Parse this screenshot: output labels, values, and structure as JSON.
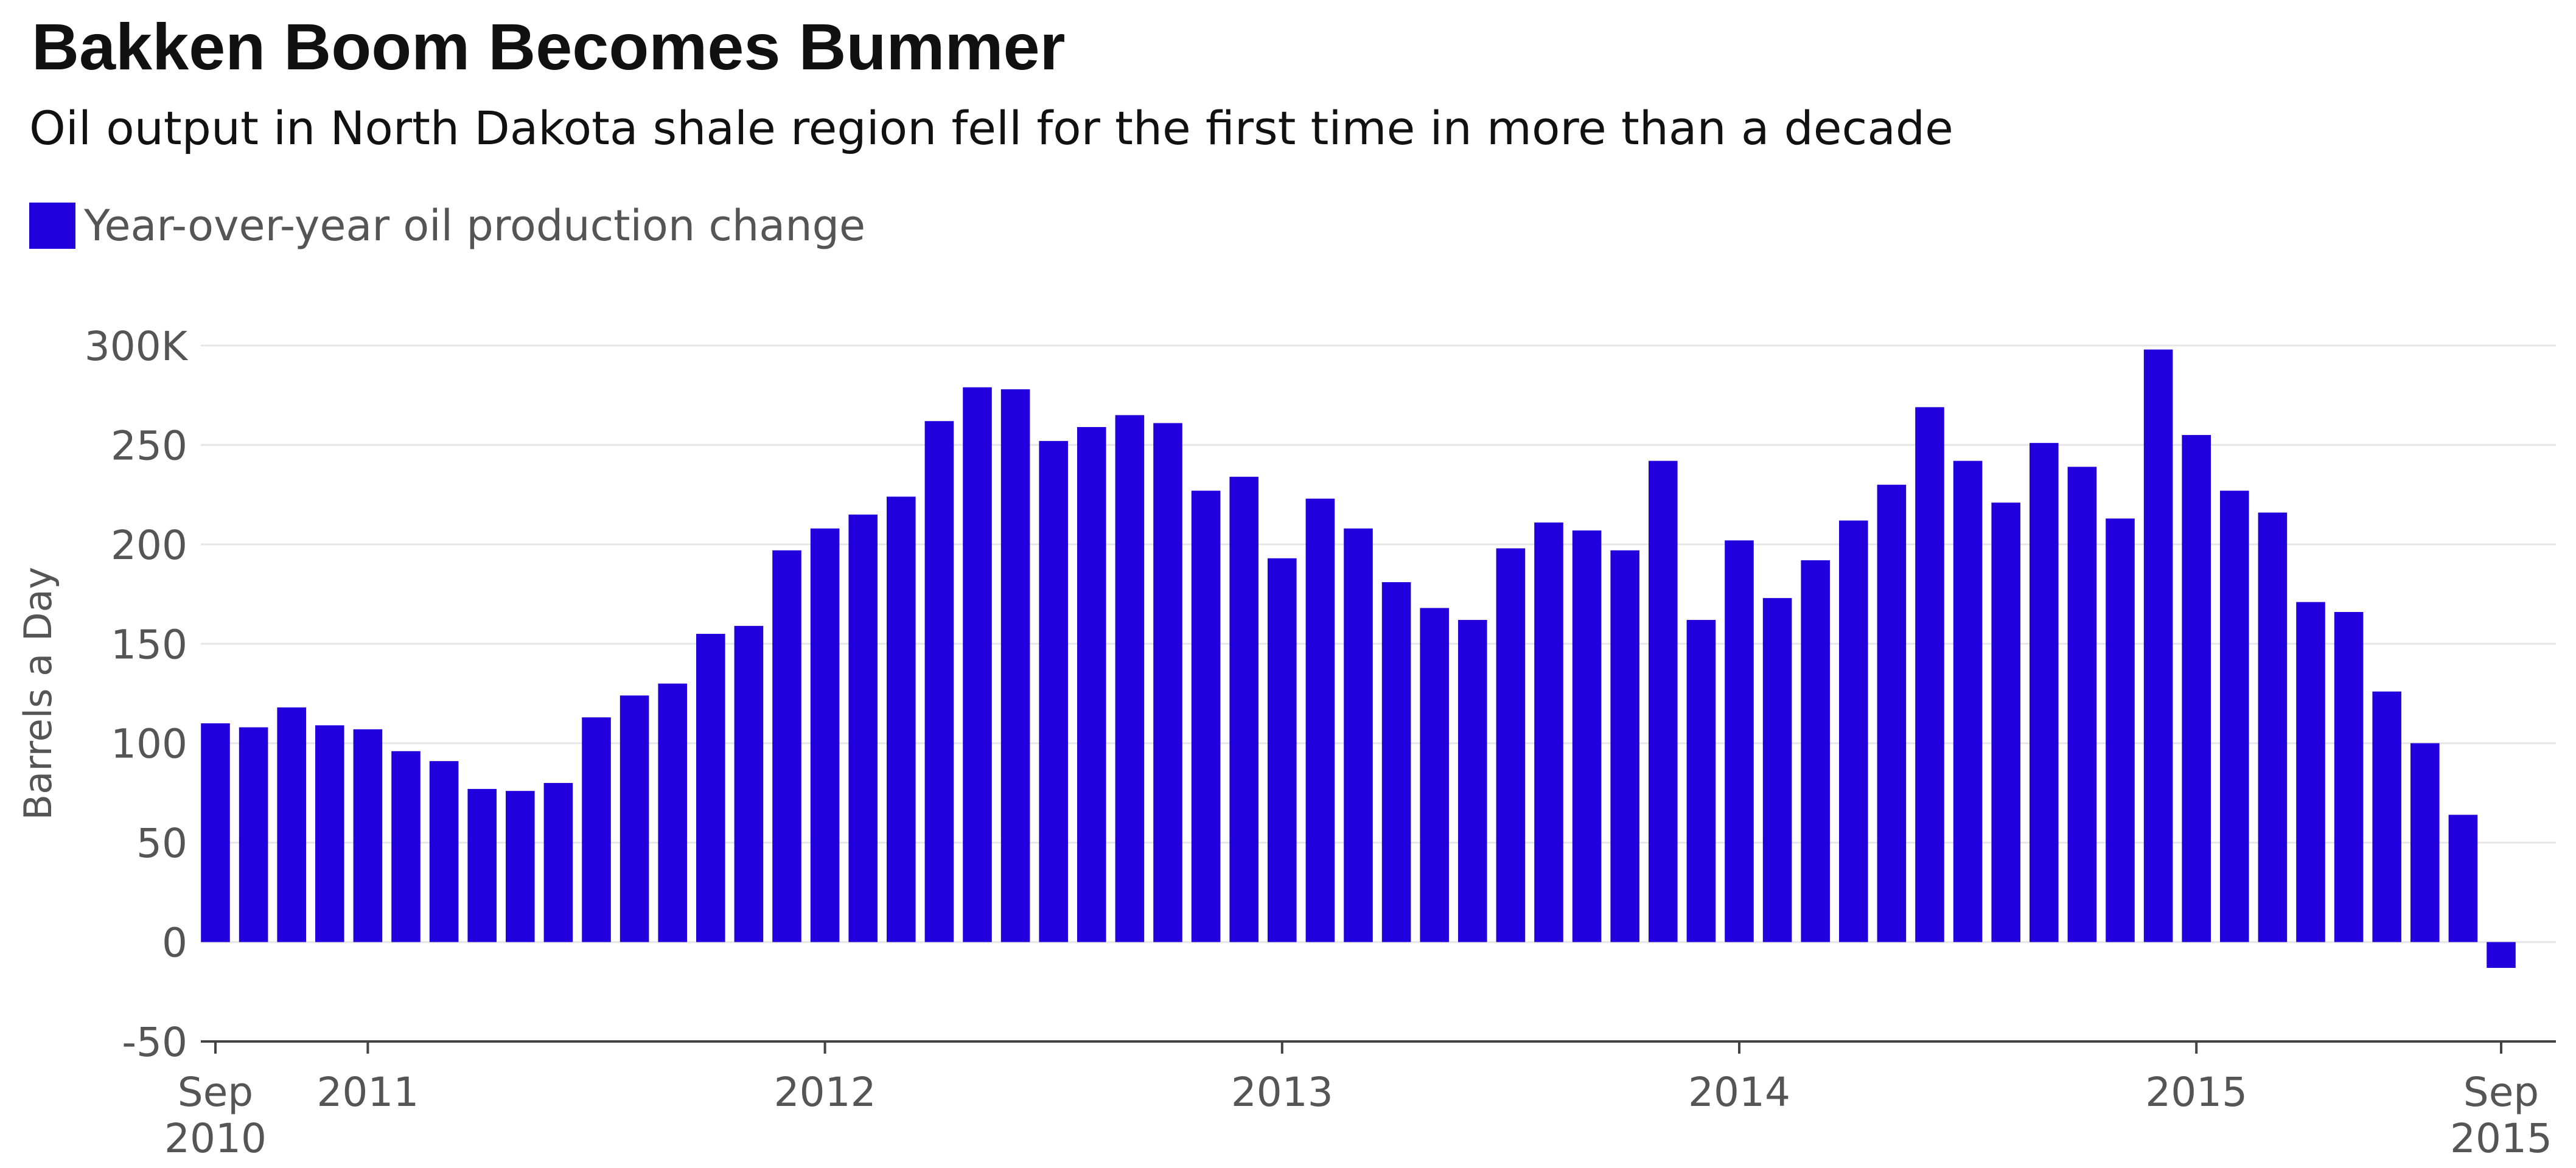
{
  "title": "Bakken Boom Becomes Bummer",
  "subtitle": "Oil output in North Dakota shale region fell for the first time in more than a decade",
  "chart_data": {
    "type": "bar",
    "legend": [
      {
        "name": "Year-over-year oil production change",
        "color": "#2200dd"
      }
    ],
    "ylabel": "Barrels a Day",
    "ylim": [
      -50,
      300
    ],
    "yticks": [
      {
        "value": 300,
        "label": "300K"
      },
      {
        "value": 250,
        "label": "250"
      },
      {
        "value": 200,
        "label": "200"
      },
      {
        "value": 150,
        "label": "150"
      },
      {
        "value": 100,
        "label": "100"
      },
      {
        "value": 50,
        "label": "50"
      },
      {
        "value": 0,
        "label": "0"
      },
      {
        "value": -50,
        "label": "-50"
      }
    ],
    "xticks": [
      {
        "index": 0,
        "line1": "Sep",
        "line2": "2010"
      },
      {
        "index": 4,
        "line1": "2011",
        "line2": ""
      },
      {
        "index": 16,
        "line1": "2012",
        "line2": ""
      },
      {
        "index": 28,
        "line1": "2013",
        "line2": ""
      },
      {
        "index": 40,
        "line1": "2014",
        "line2": ""
      },
      {
        "index": 52,
        "line1": "2015",
        "line2": ""
      },
      {
        "index": 60,
        "line1": "Sep",
        "line2": "2015"
      }
    ],
    "grid": true,
    "series": [
      {
        "name": "Year-over-year oil production change",
        "color": "#2200dd",
        "values": [
          110,
          108,
          118,
          109,
          107,
          96,
          91,
          77,
          76,
          80,
          113,
          124,
          130,
          155,
          159,
          197,
          208,
          215,
          224,
          262,
          279,
          278,
          252,
          259,
          265,
          261,
          227,
          234,
          193,
          223,
          208,
          181,
          168,
          162,
          198,
          211,
          207,
          197,
          242,
          162,
          202,
          173,
          192,
          212,
          230,
          269,
          242,
          221,
          251,
          239,
          213,
          298,
          255,
          227,
          216,
          171,
          166,
          126,
          100,
          64,
          -13
        ]
      }
    ]
  }
}
